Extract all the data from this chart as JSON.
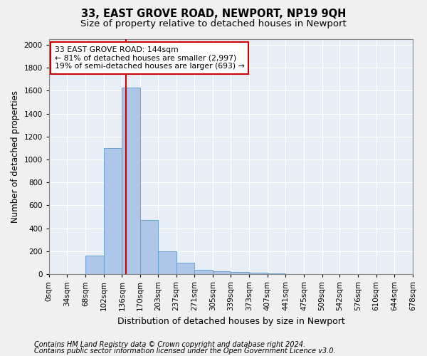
{
  "title1": "33, EAST GROVE ROAD, NEWPORT, NP19 9QH",
  "title2": "Size of property relative to detached houses in Newport",
  "xlabel": "Distribution of detached houses by size in Newport",
  "ylabel": "Number of detached properties",
  "footnote1": "Contains HM Land Registry data © Crown copyright and database right 2024.",
  "footnote2": "Contains public sector information licensed under the Open Government Licence v3.0.",
  "annotation_line1": "33 EAST GROVE ROAD: 144sqm",
  "annotation_line2": "← 81% of detached houses are smaller (2,997)",
  "annotation_line3": "19% of semi-detached houses are larger (693) →",
  "bar_edges": [
    0,
    34,
    68,
    102,
    136,
    170,
    203,
    237,
    271,
    305,
    339,
    373,
    407,
    441,
    475,
    509,
    542,
    576,
    610,
    644,
    678
  ],
  "bar_heights": [
    0,
    0,
    160,
    1100,
    1630,
    475,
    200,
    100,
    35,
    25,
    20,
    10,
    5,
    2,
    1,
    0,
    0,
    0,
    0,
    0
  ],
  "bar_color": "#aec6e8",
  "bar_edge_color": "#5a9bc9",
  "vline_x": 144,
  "vline_color": "#cc0000",
  "ylim": [
    0,
    2050
  ],
  "yticks": [
    0,
    200,
    400,
    600,
    800,
    1000,
    1200,
    1400,
    1600,
    1800,
    2000
  ],
  "bg_color": "#e8eef5",
  "grid_color": "#ffffff",
  "annotation_box_color": "#ffffff",
  "annotation_box_edge": "#cc0000",
  "title1_fontsize": 10.5,
  "title2_fontsize": 9.5,
  "axis_label_fontsize": 8.5,
  "tick_fontsize": 7.5,
  "footnote_fontsize": 7.0,
  "fig_bg_color": "#f0f0f0"
}
